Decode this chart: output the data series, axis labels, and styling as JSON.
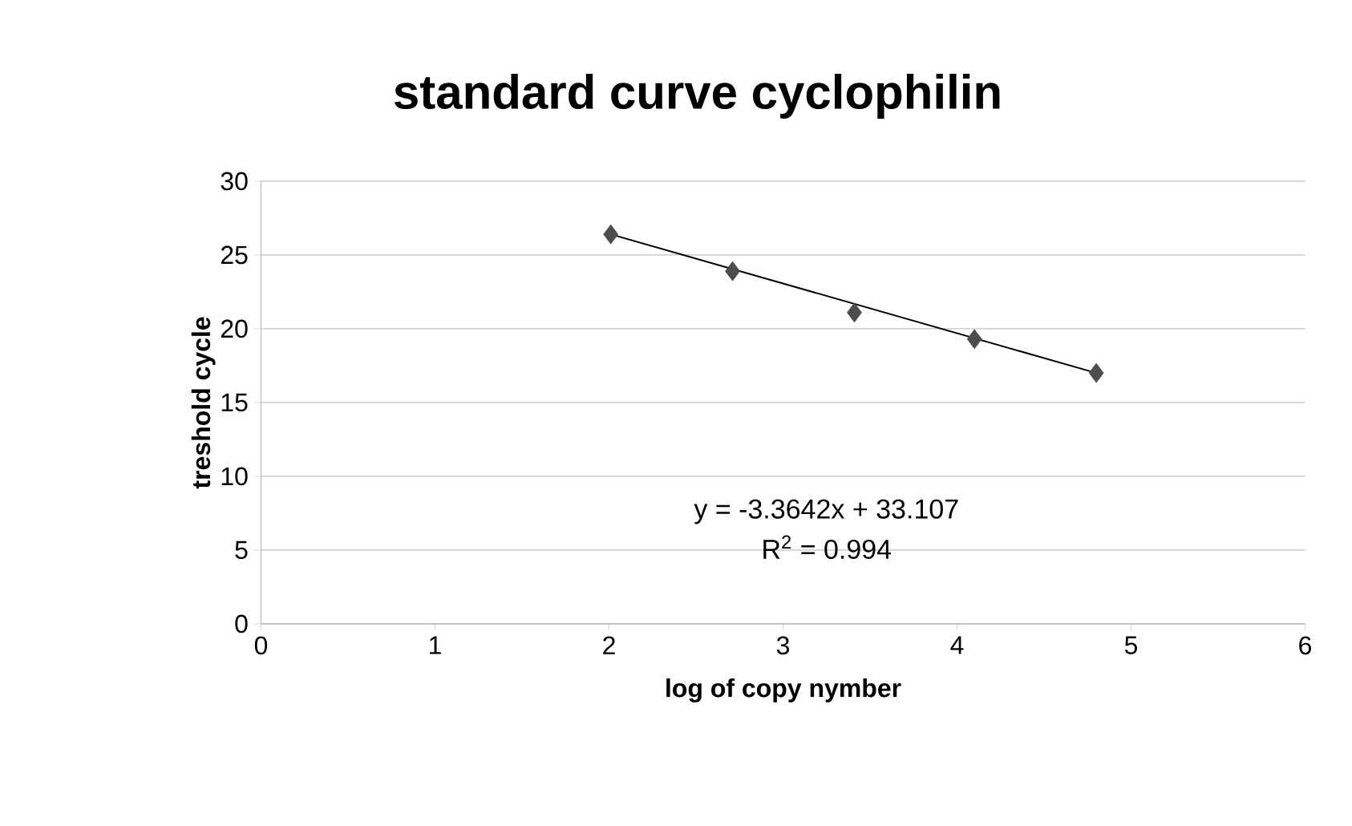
{
  "chart_data": {
    "type": "scatter",
    "title": "standard curve cyclophilin",
    "xlabel": "log of copy nymber",
    "ylabel": "treshold cycle",
    "series": [
      {
        "type": "scatter",
        "marker": "diamond",
        "color": "#4d4d4d",
        "x": [
          2.01,
          2.71,
          3.41,
          4.1,
          4.8
        ],
        "values": [
          26.4,
          23.9,
          21.1,
          19.3,
          17.0
        ]
      },
      {
        "type": "line",
        "color": "#000000",
        "x": [
          2.01,
          4.8
        ],
        "values": [
          26.4,
          17.0
        ]
      }
    ],
    "annotations": [
      "y = -3.3642x + 33.107",
      "R$^{2}$ = 0.994"
    ],
    "xlim": [
      0,
      6
    ],
    "ylim": [
      0,
      30
    ],
    "xticks": [
      0,
      1,
      2,
      3,
      4,
      5,
      6
    ],
    "yticks": [
      0,
      5,
      10,
      15,
      20,
      25,
      30
    ],
    "grid": "y"
  }
}
